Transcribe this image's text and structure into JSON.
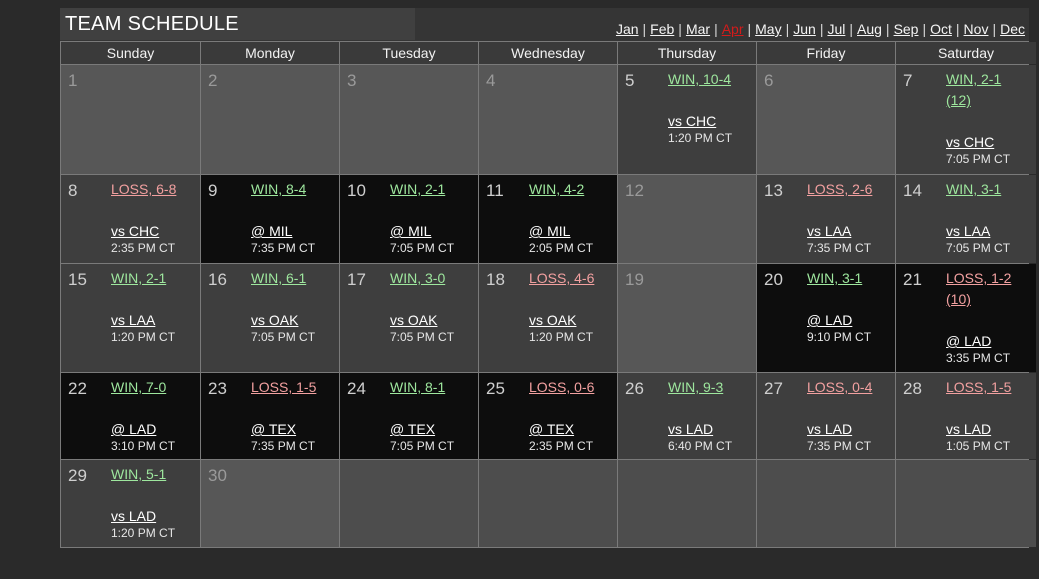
{
  "title": "TEAM SCHEDULE",
  "months": [
    {
      "label": "Jan",
      "current": false
    },
    {
      "label": "Feb",
      "current": false
    },
    {
      "label": "Mar",
      "current": false
    },
    {
      "label": "Apr",
      "current": true
    },
    {
      "label": "May",
      "current": false
    },
    {
      "label": "Jun",
      "current": false
    },
    {
      "label": "Jul",
      "current": false
    },
    {
      "label": "Aug",
      "current": false
    },
    {
      "label": "Sep",
      "current": false
    },
    {
      "label": "Oct",
      "current": false
    },
    {
      "label": "Nov",
      "current": false
    },
    {
      "label": "Dec",
      "current": false
    }
  ],
  "month_separator": "|",
  "colors": {
    "current_month": "#d41b1b",
    "win": "#9ee79e",
    "loss": "#f2a0a0"
  },
  "weekdays": [
    "Sunday",
    "Monday",
    "Tuesday",
    "Wednesday",
    "Thursday",
    "Friday",
    "Saturday"
  ],
  "weeks": [
    [
      {
        "day": "1",
        "kind": "empty"
      },
      {
        "day": "2",
        "kind": "empty"
      },
      {
        "day": "3",
        "kind": "empty"
      },
      {
        "day": "4",
        "kind": "empty"
      },
      {
        "day": "5",
        "kind": "home",
        "outcome": "win",
        "result": "WIN, 10-4",
        "opponent": "vs CHC",
        "time": "1:20 PM CT"
      },
      {
        "day": "6",
        "kind": "empty"
      },
      {
        "day": "7",
        "kind": "home",
        "outcome": "win",
        "result": "WIN, 2-1 (12)",
        "opponent": "vs CHC",
        "time": "7:05 PM CT"
      }
    ],
    [
      {
        "day": "8",
        "kind": "home",
        "outcome": "loss",
        "result": "LOSS, 6-8",
        "opponent": "vs CHC",
        "time": "2:35 PM CT"
      },
      {
        "day": "9",
        "kind": "away",
        "outcome": "win",
        "result": "WIN, 8-4",
        "opponent": "@ MIL",
        "time": "7:35 PM CT"
      },
      {
        "day": "10",
        "kind": "away",
        "outcome": "win",
        "result": "WIN, 2-1",
        "opponent": "@ MIL",
        "time": "7:05 PM CT"
      },
      {
        "day": "11",
        "kind": "away",
        "outcome": "win",
        "result": "WIN, 4-2",
        "opponent": "@ MIL",
        "time": "2:05 PM CT"
      },
      {
        "day": "12",
        "kind": "empty"
      },
      {
        "day": "13",
        "kind": "home",
        "outcome": "loss",
        "result": "LOSS, 2-6",
        "opponent": "vs LAA",
        "time": "7:35 PM CT"
      },
      {
        "day": "14",
        "kind": "home",
        "outcome": "win",
        "result": "WIN, 3-1",
        "opponent": "vs LAA",
        "time": "7:05 PM CT"
      }
    ],
    [
      {
        "day": "15",
        "kind": "home",
        "outcome": "win",
        "result": "WIN, 2-1",
        "opponent": "vs LAA",
        "time": "1:20 PM CT"
      },
      {
        "day": "16",
        "kind": "home",
        "outcome": "win",
        "result": "WIN, 6-1",
        "opponent": "vs OAK",
        "time": "7:05 PM CT"
      },
      {
        "day": "17",
        "kind": "home",
        "outcome": "win",
        "result": "WIN, 3-0",
        "opponent": "vs OAK",
        "time": "7:05 PM CT"
      },
      {
        "day": "18",
        "kind": "home",
        "outcome": "loss",
        "result": "LOSS, 4-6",
        "opponent": "vs OAK",
        "time": "1:20 PM CT"
      },
      {
        "day": "19",
        "kind": "empty"
      },
      {
        "day": "20",
        "kind": "away",
        "outcome": "win",
        "result": "WIN, 3-1",
        "opponent": "@ LAD",
        "time": "9:10 PM CT"
      },
      {
        "day": "21",
        "kind": "away",
        "outcome": "loss",
        "result": "LOSS, 1-2 (10)",
        "opponent": "@ LAD",
        "time": "3:35 PM CT"
      }
    ],
    [
      {
        "day": "22",
        "kind": "away",
        "outcome": "win",
        "result": "WIN, 7-0",
        "opponent": "@ LAD",
        "time": "3:10 PM CT"
      },
      {
        "day": "23",
        "kind": "away",
        "outcome": "loss",
        "result": "LOSS, 1-5",
        "opponent": "@ TEX",
        "time": "7:35 PM CT"
      },
      {
        "day": "24",
        "kind": "away",
        "outcome": "win",
        "result": "WIN, 8-1",
        "opponent": "@ TEX",
        "time": "7:05 PM CT"
      },
      {
        "day": "25",
        "kind": "away",
        "outcome": "loss",
        "result": "LOSS, 0-6",
        "opponent": "@ TEX",
        "time": "2:35 PM CT"
      },
      {
        "day": "26",
        "kind": "home",
        "outcome": "win",
        "result": "WIN, 9-3",
        "opponent": "vs LAD",
        "time": "6:40 PM CT"
      },
      {
        "day": "27",
        "kind": "home",
        "outcome": "loss",
        "result": "LOSS, 0-4",
        "opponent": "vs LAD",
        "time": "7:35 PM CT"
      },
      {
        "day": "28",
        "kind": "home",
        "outcome": "loss",
        "result": "LOSS, 1-5",
        "opponent": "vs LAD",
        "time": "1:05 PM CT"
      }
    ],
    [
      {
        "day": "29",
        "kind": "home",
        "outcome": "win",
        "result": "WIN, 5-1",
        "opponent": "vs LAD",
        "time": "1:20 PM CT"
      },
      {
        "day": "30",
        "kind": "empty"
      },
      {
        "day": "",
        "kind": "blank"
      },
      {
        "day": "",
        "kind": "blank"
      },
      {
        "day": "",
        "kind": "blank"
      },
      {
        "day": "",
        "kind": "blank"
      },
      {
        "day": "",
        "kind": "blank"
      }
    ]
  ]
}
